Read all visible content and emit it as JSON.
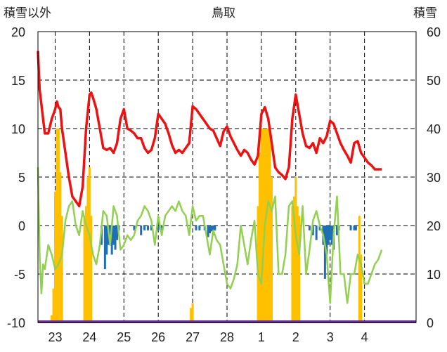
{
  "chart_data": {
    "type": "line",
    "title": "鳥取",
    "ylabel_left": "積雪以外",
    "ylabel_right": "積雪",
    "ylim_left": [
      -10,
      20
    ],
    "ylim_right": [
      0,
      60
    ],
    "yticks_left": [
      "20",
      "15",
      "10",
      "5",
      "0",
      "-5",
      "-10"
    ],
    "yticks_right": [
      "60",
      "50",
      "40",
      "30",
      "20",
      "10",
      "0"
    ],
    "x_labels": [
      "23",
      "24",
      "25",
      "26",
      "27",
      "28",
      "1",
      "2",
      "3",
      "4"
    ],
    "x_range": [
      22.5,
      33.5
    ],
    "x_label_positions": [
      23,
      24,
      25,
      26,
      27,
      28,
      29,
      30,
      31,
      32
    ],
    "grid": true,
    "colors": {
      "red_series": "#ee1111",
      "green_series": "#92d050",
      "orange_bars": "#ffc000",
      "blue_bars": "#1f6fb5",
      "bottom_line": "#7030a0"
    },
    "series": [
      {
        "color": "red",
        "axis": "left",
        "x": [
          22.5,
          22.55,
          22.6,
          22.65,
          22.7,
          22.8,
          22.9,
          23.0,
          23.05,
          23.1,
          23.15,
          23.2,
          23.3,
          23.4,
          23.5,
          23.6,
          23.7,
          23.8,
          23.9,
          24.0,
          24.05,
          24.1,
          24.2,
          24.3,
          24.4,
          24.5,
          24.6,
          24.7,
          24.8,
          24.9,
          25.0,
          25.1,
          25.2,
          25.3,
          25.4,
          25.5,
          25.6,
          25.7,
          25.8,
          25.9,
          26.0,
          26.1,
          26.2,
          26.3,
          26.4,
          26.5,
          26.6,
          26.7,
          26.8,
          26.9,
          27.0,
          27.1,
          27.2,
          27.3,
          27.4,
          27.5,
          27.6,
          27.7,
          27.8,
          27.9,
          28.0,
          28.1,
          28.2,
          28.3,
          28.4,
          28.5,
          28.6,
          28.7,
          28.8,
          28.9,
          29.0,
          29.1,
          29.2,
          29.3,
          29.4,
          29.5,
          29.6,
          29.7,
          29.8,
          29.9,
          30.0,
          30.1,
          30.2,
          30.3,
          30.4,
          30.5,
          30.6,
          30.7,
          30.8,
          30.9,
          31.0,
          31.1,
          31.2,
          31.3,
          31.4,
          31.5,
          31.6,
          31.7,
          31.8,
          31.9,
          32.0,
          32.1,
          32.2,
          32.3,
          32.4,
          32.5
        ],
        "y": [
          18,
          14,
          12.5,
          11,
          9.5,
          9.5,
          11,
          12,
          12.8,
          12.2,
          12,
          10,
          7.5,
          5,
          3,
          2.5,
          2,
          4,
          10,
          13.5,
          13.7,
          13.2,
          12,
          10,
          8,
          7.8,
          8,
          7.5,
          8.5,
          11,
          12,
          10,
          9.8,
          9.5,
          9,
          9,
          8,
          7.5,
          7.8,
          9,
          11.5,
          11,
          10.5,
          9.5,
          8.3,
          7.5,
          7.8,
          7.5,
          8,
          8.5,
          12.3,
          12,
          11.5,
          11,
          10.5,
          10,
          9.8,
          9,
          8.2,
          9.7,
          10.2,
          9.2,
          8.5,
          7.8,
          7.2,
          7.8,
          7.5,
          6.8,
          6.3,
          7.2,
          11.5,
          12.2,
          11,
          8.5,
          6,
          5.5,
          5.2,
          4.8,
          6,
          11,
          13.5,
          11.5,
          9.5,
          8.2,
          8,
          8.5,
          7.5,
          9,
          8.5,
          9.2,
          10.8,
          10.5,
          9.5,
          8.5,
          7.8,
          7.2,
          6.5,
          8.5,
          8.7,
          7.5,
          7,
          6.5,
          6.2,
          5.8,
          5.8,
          5.8
        ]
      },
      {
        "color": "green",
        "axis": "left",
        "x": [
          22.5,
          22.55,
          22.6,
          22.65,
          22.7,
          22.8,
          22.9,
          23.0,
          23.1,
          23.2,
          23.3,
          23.4,
          23.5,
          23.6,
          23.7,
          23.8,
          23.9,
          24.0,
          24.1,
          24.2,
          24.3,
          24.4,
          24.5,
          24.6,
          24.7,
          24.8,
          24.9,
          25.0,
          25.1,
          25.2,
          25.3,
          25.4,
          25.5,
          25.6,
          25.7,
          25.8,
          25.9,
          26.0,
          26.1,
          26.2,
          26.3,
          26.4,
          26.5,
          26.6,
          26.7,
          26.8,
          26.9,
          27.0,
          27.1,
          27.2,
          27.3,
          27.4,
          27.5,
          27.6,
          27.7,
          27.8,
          27.9,
          28.0,
          28.1,
          28.2,
          28.3,
          28.4,
          28.5,
          28.6,
          28.7,
          28.8,
          28.9,
          29.0,
          29.1,
          29.2,
          29.3,
          29.4,
          29.5,
          29.6,
          29.7,
          29.8,
          29.9,
          30.0,
          30.1,
          30.2,
          30.3,
          30.4,
          30.5,
          30.6,
          30.7,
          30.8,
          30.9,
          31.0,
          31.1,
          31.2,
          31.3,
          31.4,
          31.5,
          31.6,
          31.7,
          31.8,
          31.9,
          32.0,
          32.1,
          32.2,
          32.3,
          32.4,
          32.5
        ],
        "y": [
          6,
          -3,
          -7,
          -4,
          -4.5,
          -2,
          -3,
          -4.5,
          -4,
          -3,
          0.5,
          2,
          2.5,
          0,
          -1,
          1.5,
          0,
          -1,
          -3,
          -4,
          -2,
          1.5,
          1,
          -2,
          2,
          1,
          -2.5,
          -2,
          -1,
          -1.5,
          -1,
          0.5,
          1,
          2,
          1.5,
          0.5,
          -2,
          1,
          -1,
          1,
          1.5,
          2,
          1.5,
          2.5,
          1.5,
          1,
          -1,
          2,
          0.5,
          1,
          1,
          -1,
          -3,
          -0.5,
          -1.5,
          -2,
          -4,
          -6,
          -6.5,
          -5.5,
          -4,
          0,
          -2,
          -4,
          -1.5,
          0.5,
          -5,
          -6,
          0,
          2.5,
          1.5,
          3,
          -5,
          -5,
          -3,
          2,
          2.5,
          -1,
          -3,
          2,
          -5,
          -2.5,
          0.5,
          1.5,
          0,
          -1,
          -3,
          -8,
          -1,
          3,
          -5,
          -5,
          -8,
          -5,
          -5,
          -3,
          -4,
          -6,
          -6,
          -5,
          -4,
          -3.5,
          -2.5
        ]
      }
    ],
    "bars_right_axis": [
      {
        "color": "orange",
        "x": [
          22.9,
          22.95,
          23.0,
          23.05,
          23.1,
          23.15,
          23.2
        ],
        "y": [
          1.5,
          7,
          27,
          40,
          40,
          31,
          22
        ]
      },
      {
        "color": "orange",
        "x": [
          23.85,
          23.9,
          23.95,
          24.0,
          24.05
        ],
        "y": [
          22,
          24,
          30,
          32,
          22
        ]
      },
      {
        "color": "orange",
        "x": [
          26.95,
          27.0
        ],
        "y": [
          3,
          4
        ]
      },
      {
        "color": "orange",
        "x": [
          28.9,
          28.95,
          29.0,
          29.05,
          29.1,
          29.15,
          29.2,
          29.25,
          29.3
        ],
        "y": [
          24,
          35,
          40,
          40,
          40,
          40,
          40,
          40,
          30
        ]
      },
      {
        "color": "orange",
        "x": [
          29.9,
          29.95,
          30.0,
          30.05,
          30.1
        ],
        "y": [
          24,
          26,
          30,
          24,
          22
        ]
      },
      {
        "color": "orange",
        "x": [
          31.85,
          31.9
        ],
        "y": [
          22,
          14
        ]
      }
    ],
    "bars_neg_left": [
      {
        "color": "blue",
        "x": [
          24.35,
          24.45,
          24.5,
          24.55,
          24.6,
          24.65,
          24.7,
          24.75,
          24.8,
          24.85
        ],
        "y": [
          -2,
          -4.5,
          -3,
          -2,
          -1,
          -3,
          -2,
          -2.5,
          -1.5,
          -0.5
        ]
      },
      {
        "color": "blue",
        "x": [
          25.3,
          25.5,
          25.6,
          25.7,
          25.8,
          26.0,
          26.1
        ],
        "y": [
          -0.5,
          -1,
          -0.5,
          -0.5,
          -0.5,
          -0.5,
          -0.5
        ]
      },
      {
        "color": "blue",
        "x": [
          27.1,
          27.2,
          27.35,
          27.45,
          27.5,
          27.55,
          27.6,
          27.65
        ],
        "y": [
          -0.5,
          -0.5,
          -0.5,
          -1.2,
          -0.8,
          -0.6,
          -1,
          -0.5
        ]
      },
      {
        "color": "blue",
        "x": [
          30.4,
          30.5,
          30.6,
          30.7,
          30.8,
          30.85,
          30.9,
          30.95,
          31.0,
          31.05,
          31.1,
          31.2,
          31.25
        ],
        "y": [
          -0.5,
          -1,
          -1.5,
          -0.5,
          -2,
          -5.5,
          -3,
          -2,
          -1.5,
          -2,
          -2.5,
          -1,
          -0.5
        ]
      },
      {
        "color": "blue",
        "x": [
          31.6,
          31.7,
          31.75
        ],
        "y": [
          -0.5,
          -0.5,
          -0.5
        ]
      }
    ]
  }
}
